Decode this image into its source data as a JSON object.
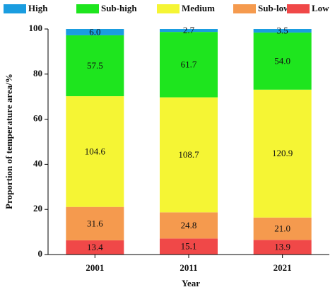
{
  "chart_data": {
    "type": "stacked-bar",
    "xlabel": "Year",
    "ylabel": "Proportion of temperature area/%",
    "categories": [
      "2001",
      "2011",
      "2021"
    ],
    "series": [
      {
        "name": "Low",
        "color": "#f04848",
        "values": [
          6.3,
          7.1,
          6.5
        ],
        "labels": [
          "13.4",
          "15.1",
          "13.9"
        ]
      },
      {
        "name": "Sub-low",
        "color": "#f59a4e",
        "values": [
          14.8,
          11.6,
          9.9
        ],
        "labels": [
          "31.6",
          "24.8",
          "21.0"
        ]
      },
      {
        "name": "Medium",
        "color": "#f5f534",
        "values": [
          49.1,
          51.0,
          56.7
        ],
        "labels": [
          "104.6",
          "108.7",
          "120.9"
        ]
      },
      {
        "name": "Sub-high",
        "color": "#1ee51e",
        "values": [
          27.0,
          29.0,
          25.3
        ],
        "labels": [
          "57.5",
          "61.7",
          "54.0"
        ]
      },
      {
        "name": "High",
        "color": "#1a9de0",
        "values": [
          2.8,
          1.3,
          1.6
        ],
        "labels": [
          "6.0",
          "2.7",
          "3.5"
        ]
      }
    ],
    "legend_order": [
      4,
      3,
      2,
      1,
      0
    ],
    "ylim": [
      0,
      100
    ],
    "yticks": [
      0,
      20,
      40,
      60,
      80,
      100
    ]
  }
}
